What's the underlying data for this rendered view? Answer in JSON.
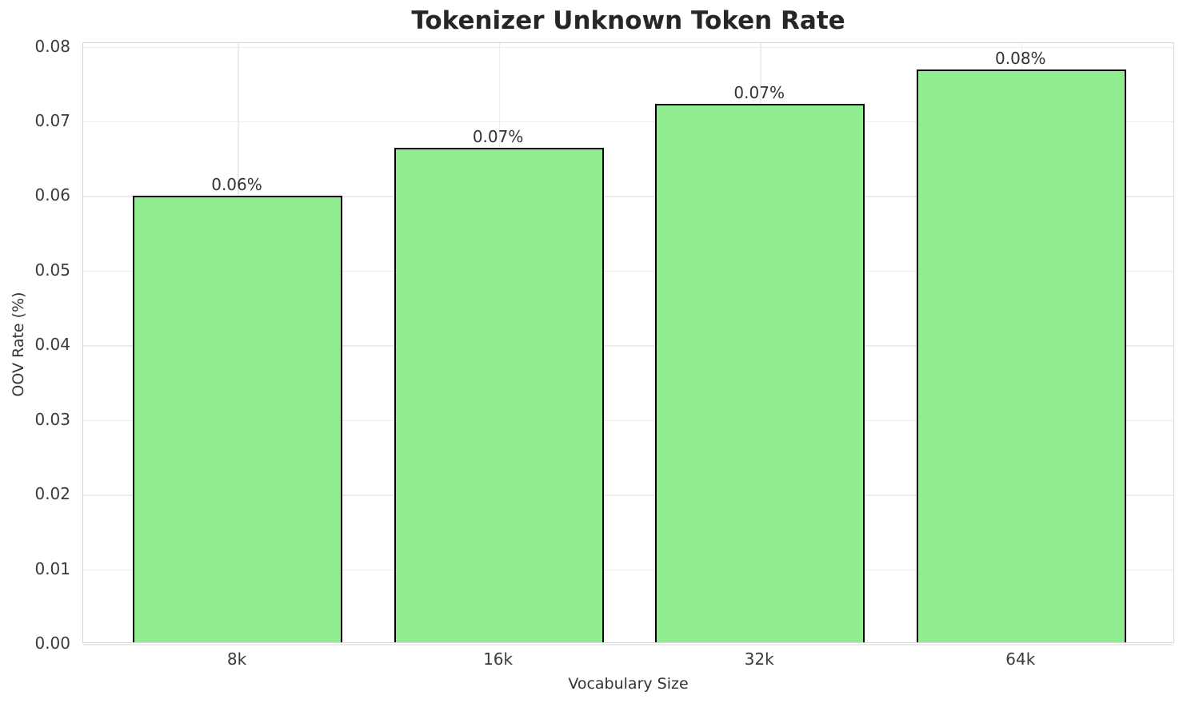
{
  "chart_data": {
    "type": "bar",
    "title": "Tokenizer Unknown Token Rate",
    "xlabel": "Vocabulary Size",
    "ylabel": "OOV Rate (%)",
    "categories": [
      "8k",
      "16k",
      "32k",
      "64k"
    ],
    "values": [
      0.0598,
      0.0663,
      0.0721,
      0.0767
    ],
    "bar_labels": [
      "0.06%",
      "0.07%",
      "0.07%",
      "0.08%"
    ],
    "ylim": [
      0,
      0.08
    ],
    "yticks": [
      "0.00",
      "0.01",
      "0.02",
      "0.03",
      "0.04",
      "0.05",
      "0.06",
      "0.07",
      "0.08"
    ],
    "grid": true,
    "legend": "none",
    "bar_color": "#90EE90",
    "bar_edge_color": "#000000",
    "grid_color": "#ececec",
    "background_color": "#ffffff"
  }
}
